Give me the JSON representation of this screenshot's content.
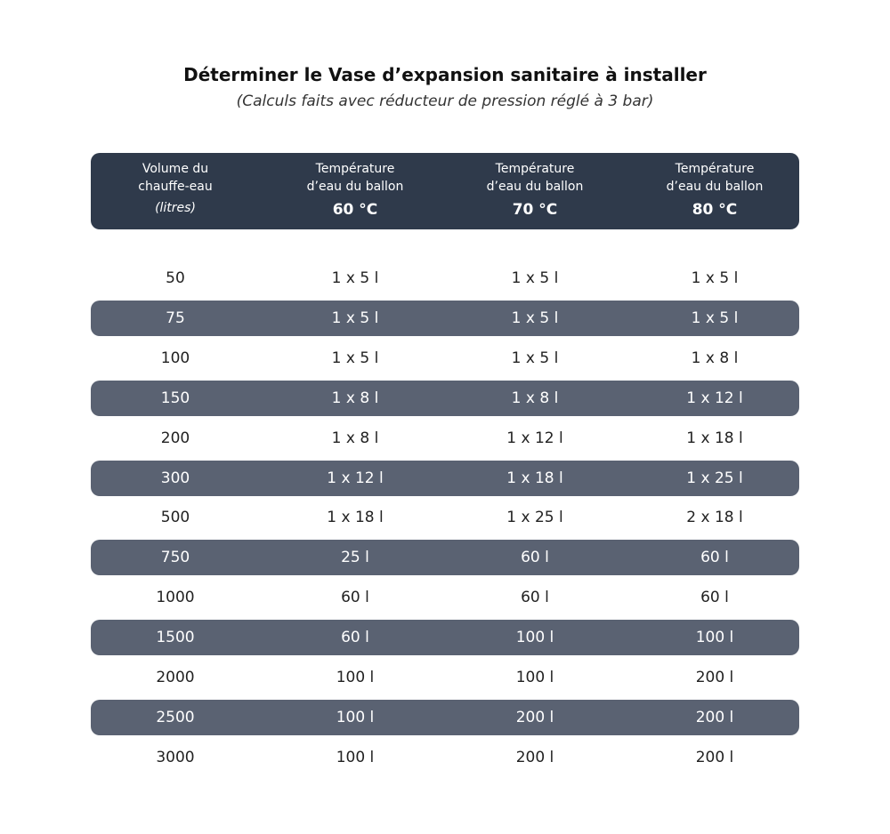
{
  "title": "Déterminer le Vase d’expansion sanitaire à installer",
  "subtitle": "(Calculs faits avec réducteur de pression réglé à 3 bar)",
  "header": {
    "col0": {
      "line1": "Volume du",
      "line2": "chauffe-eau",
      "unit": "(litres)"
    },
    "temp_label_1": "Température",
    "temp_label_2": "d’eau du ballon",
    "temps": [
      "60 °C",
      "70 °C",
      "80 °C"
    ]
  },
  "rows": [
    [
      "50",
      "1 x 5 l",
      "1 x 5 l",
      "1 x 5 l"
    ],
    [
      "75",
      "1 x 5 l",
      "1 x 5 l",
      "1 x 5 l"
    ],
    [
      "100",
      "1 x 5 l",
      "1 x 5 l",
      "1 x 8 l"
    ],
    [
      "150",
      "1 x 8 l",
      "1 x 8 l",
      "1 x 12 l"
    ],
    [
      "200",
      "1 x 8 l",
      "1 x 12 l",
      "1 x 18 l"
    ],
    [
      "300",
      "1 x 12 l",
      "1 x 18 l",
      "1 x 25 l"
    ],
    [
      "500",
      "1 x 18 l",
      "1 x 25 l",
      "2 x 18 l"
    ],
    [
      "750",
      "25 l",
      "60 l",
      "60 l"
    ],
    [
      "1000",
      "60 l",
      "60 l",
      "60 l"
    ],
    [
      "1500",
      "60 l",
      "100 l",
      "100 l"
    ],
    [
      "2000",
      "100 l",
      "100 l",
      "200 l"
    ],
    [
      "2500",
      "100 l",
      "200 l",
      "200 l"
    ],
    [
      "3000",
      "100 l",
      "200 l",
      "200 l"
    ]
  ]
}
